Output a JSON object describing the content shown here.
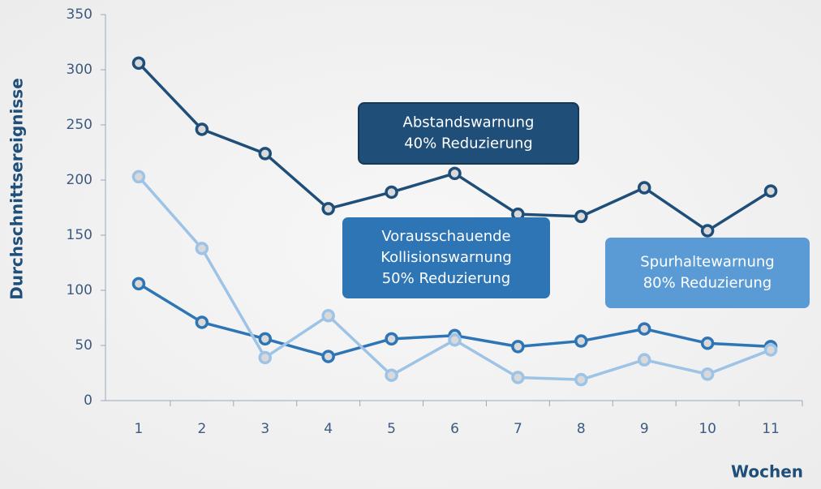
{
  "chart_data": {
    "type": "line",
    "y_label": "Durchschnittsereignisse",
    "x_label": "Wochen",
    "categories": [
      "1",
      "2",
      "3",
      "4",
      "5",
      "6",
      "7",
      "8",
      "9",
      "10",
      "11"
    ],
    "series": [
      {
        "color": "#1f4e79",
        "values": [
          306,
          246,
          224,
          174,
          189,
          206,
          169,
          167,
          193,
          154,
          190
        ]
      },
      {
        "color": "#2e75b6",
        "values": [
          106,
          71,
          56,
          40,
          56,
          59,
          49,
          54,
          65,
          52,
          49
        ]
      },
      {
        "color": "#9dc3e6",
        "values": [
          203,
          138,
          39,
          77,
          23,
          55,
          21,
          19,
          37,
          24,
          46
        ]
      }
    ],
    "annotations": [
      {
        "lines": [
          "Abstandswarnung",
          "40% Reduzierung"
        ],
        "color": "#1f4e79"
      },
      {
        "lines": [
          "Vorausschauende",
          "Kollisionswarnung",
          "50% Reduzierung"
        ],
        "color": "#2e75b6"
      },
      {
        "lines": [
          "Spurhaltewarnung",
          "80% Reduzierung"
        ],
        "color": "#5b9bd5"
      }
    ],
    "ylim": [
      0,
      350
    ],
    "yticks": [
      0,
      50,
      100,
      150,
      200,
      250,
      300,
      350
    ]
  }
}
